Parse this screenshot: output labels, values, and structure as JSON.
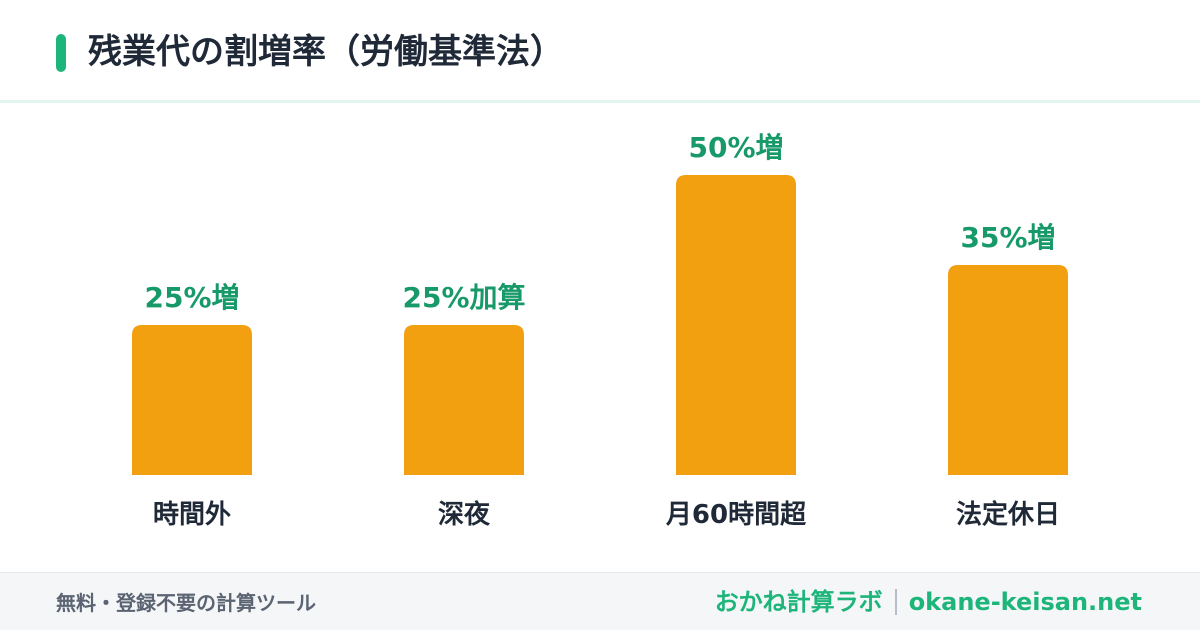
{
  "header": {
    "title": "残業代の割増率（労働基準法）"
  },
  "colors": {
    "accent": "#1db57a",
    "bar": "#f3a010",
    "value_label": "#18996a",
    "category_label": "#1f2937"
  },
  "chart_data": {
    "type": "bar",
    "title": "残業代の割増率（労働基準法）",
    "xlabel": "",
    "ylabel": "",
    "categories": [
      "時間外",
      "深夜",
      "月60時間超",
      "法定休日"
    ],
    "values": [
      25,
      25,
      50,
      35
    ],
    "data_labels": [
      "25%増",
      "25%加算",
      "50%増",
      "35%増"
    ],
    "ylim": [
      0,
      50
    ],
    "grid": false,
    "legend": "none"
  },
  "footer": {
    "tagline": "無料・登録不要の計算ツール",
    "brand_name": "おかね計算ラボ",
    "brand_url": "okane-keisan.net"
  }
}
